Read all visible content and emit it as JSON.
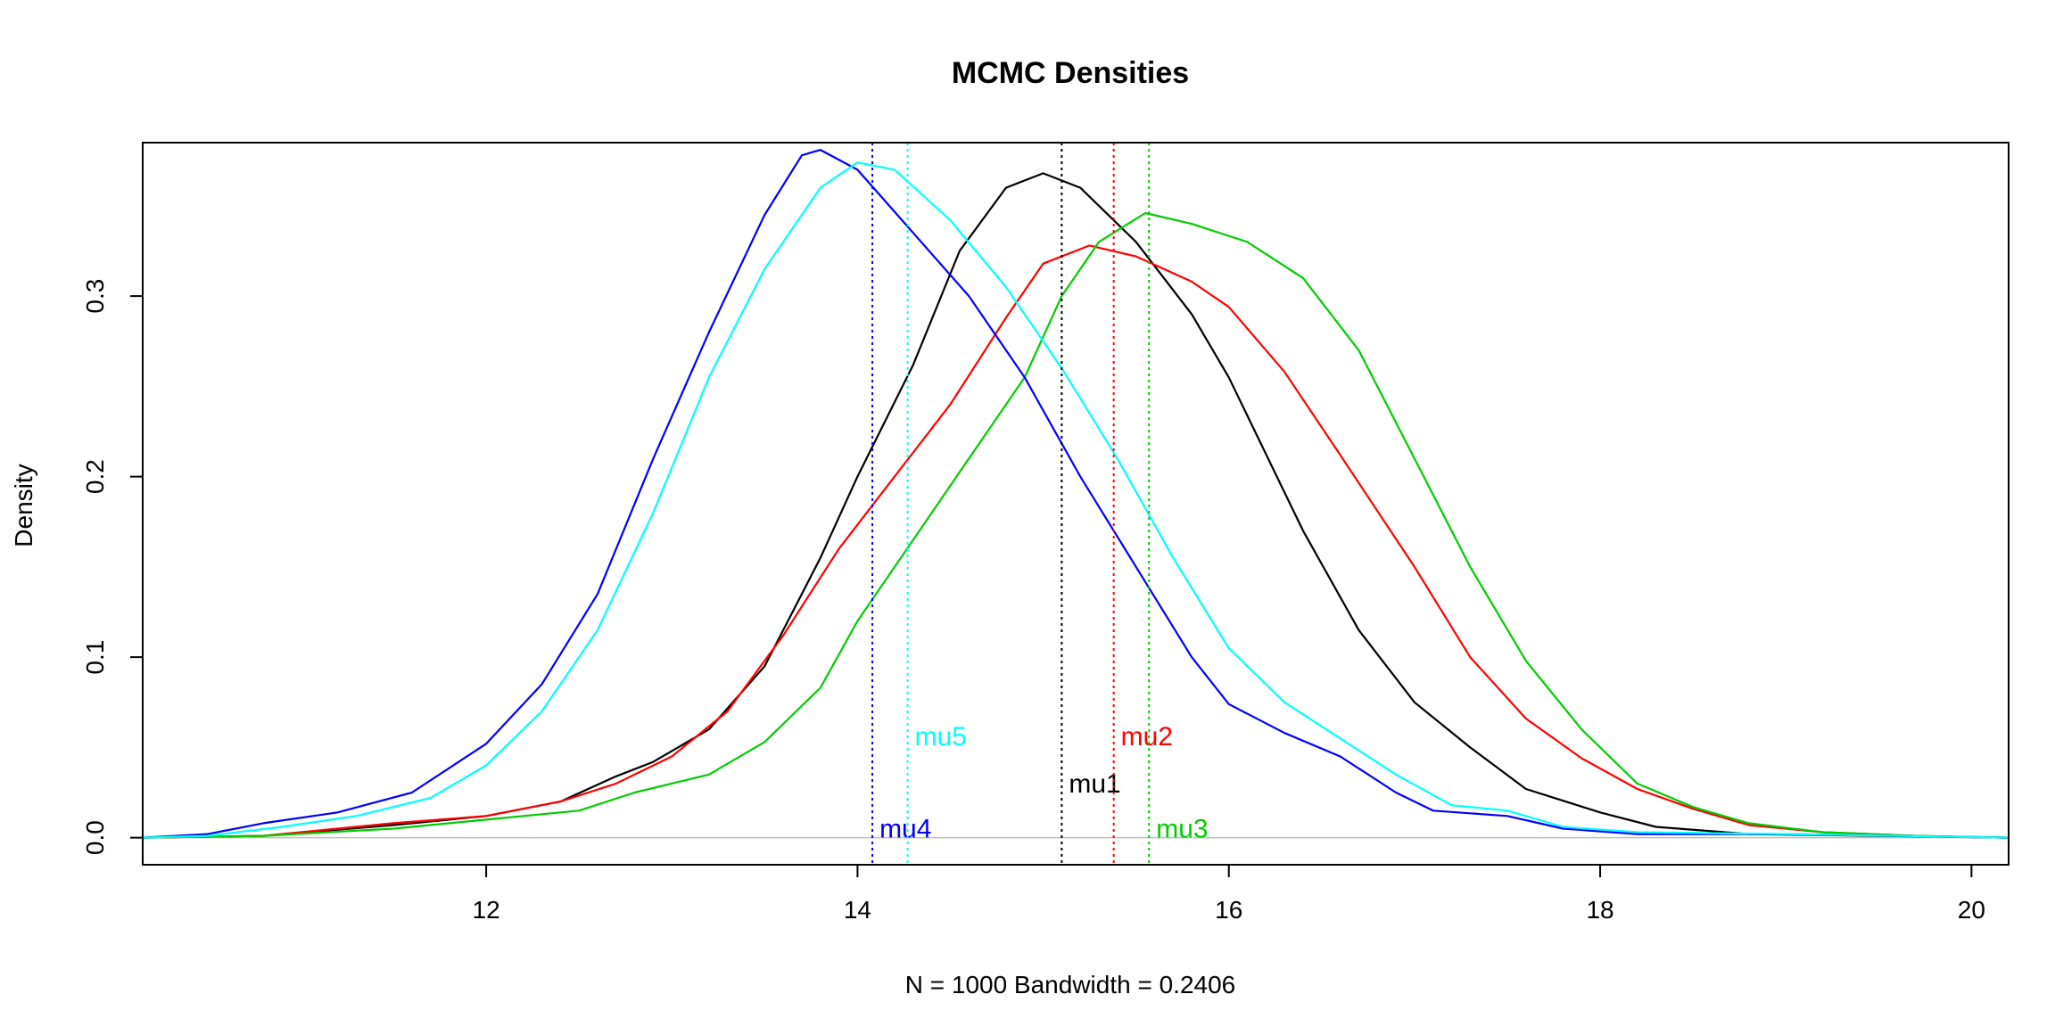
{
  "chart_data": {
    "type": "line",
    "title": "MCMC Densities",
    "xlabel": "N = 1000   Bandwidth = 0.2406",
    "ylabel": "Density",
    "xlim": [
      10.15,
      20.2
    ],
    "ylim": [
      -0.015,
      0.385
    ],
    "x_ticks": [
      12,
      14,
      16,
      18,
      20
    ],
    "x_tick_labels": [
      "12",
      "14",
      "16",
      "18",
      "20"
    ],
    "y_ticks": [
      0.0,
      0.1,
      0.2,
      0.3
    ],
    "y_tick_labels": [
      "0.0",
      "0.1",
      "0.2",
      "0.3"
    ],
    "grid": false,
    "zero_line": true,
    "series": [
      {
        "name": "mu1",
        "color": "#000000",
        "mean": 15.1,
        "label_y": 0.03,
        "points": [
          [
            10.15,
            0
          ],
          [
            10.8,
            0.001
          ],
          [
            11.5,
            0.007
          ],
          [
            12.0,
            0.012
          ],
          [
            12.4,
            0.02
          ],
          [
            12.7,
            0.034
          ],
          [
            12.9,
            0.042
          ],
          [
            13.2,
            0.06
          ],
          [
            13.5,
            0.095
          ],
          [
            13.8,
            0.155
          ],
          [
            14.0,
            0.2
          ],
          [
            14.3,
            0.262
          ],
          [
            14.55,
            0.325
          ],
          [
            14.8,
            0.36
          ],
          [
            15.0,
            0.368
          ],
          [
            15.2,
            0.36
          ],
          [
            15.5,
            0.33
          ],
          [
            15.8,
            0.29
          ],
          [
            16.0,
            0.255
          ],
          [
            16.4,
            0.17
          ],
          [
            16.7,
            0.115
          ],
          [
            17.0,
            0.075
          ],
          [
            17.3,
            0.05
          ],
          [
            17.6,
            0.027
          ],
          [
            18.0,
            0.014
          ],
          [
            18.3,
            0.006
          ],
          [
            18.8,
            0.002
          ],
          [
            19.5,
            0.001
          ],
          [
            20.2,
            0
          ]
        ]
      },
      {
        "name": "mu2",
        "color": "#ff0000",
        "mean": 15.38,
        "label_y": 0.056,
        "points": [
          [
            10.15,
            0
          ],
          [
            10.8,
            0.001
          ],
          [
            11.5,
            0.008
          ],
          [
            12.0,
            0.012
          ],
          [
            12.4,
            0.02
          ],
          [
            12.7,
            0.03
          ],
          [
            13.0,
            0.045
          ],
          [
            13.3,
            0.07
          ],
          [
            13.6,
            0.112
          ],
          [
            13.9,
            0.16
          ],
          [
            14.2,
            0.2
          ],
          [
            14.5,
            0.24
          ],
          [
            14.8,
            0.288
          ],
          [
            15.0,
            0.318
          ],
          [
            15.25,
            0.328
          ],
          [
            15.5,
            0.322
          ],
          [
            15.8,
            0.308
          ],
          [
            16.0,
            0.294
          ],
          [
            16.3,
            0.258
          ],
          [
            16.6,
            0.212
          ],
          [
            17.0,
            0.15
          ],
          [
            17.3,
            0.1
          ],
          [
            17.6,
            0.066
          ],
          [
            17.9,
            0.044
          ],
          [
            18.2,
            0.027
          ],
          [
            18.5,
            0.016
          ],
          [
            18.8,
            0.007
          ],
          [
            19.2,
            0.003
          ],
          [
            19.7,
            0.001
          ],
          [
            20.2,
            0
          ]
        ]
      },
      {
        "name": "mu3",
        "color": "#00cd00",
        "mean": 15.57,
        "label_y": 0.005,
        "points": [
          [
            10.15,
            0
          ],
          [
            10.8,
            0.001
          ],
          [
            11.5,
            0.005
          ],
          [
            12.0,
            0.01
          ],
          [
            12.5,
            0.015
          ],
          [
            12.8,
            0.025
          ],
          [
            13.2,
            0.035
          ],
          [
            13.5,
            0.053
          ],
          [
            13.8,
            0.083
          ],
          [
            14.0,
            0.12
          ],
          [
            14.3,
            0.165
          ],
          [
            14.6,
            0.21
          ],
          [
            14.9,
            0.255
          ],
          [
            15.1,
            0.3
          ],
          [
            15.3,
            0.33
          ],
          [
            15.55,
            0.346
          ],
          [
            15.8,
            0.34
          ],
          [
            16.1,
            0.33
          ],
          [
            16.4,
            0.31
          ],
          [
            16.7,
            0.27
          ],
          [
            17.0,
            0.21
          ],
          [
            17.3,
            0.15
          ],
          [
            17.6,
            0.098
          ],
          [
            17.9,
            0.06
          ],
          [
            18.2,
            0.03
          ],
          [
            18.5,
            0.017
          ],
          [
            18.8,
            0.008
          ],
          [
            19.2,
            0.003
          ],
          [
            19.7,
            0.001
          ],
          [
            20.2,
            0
          ]
        ]
      },
      {
        "name": "mu4",
        "color": "#0000ff",
        "mean": 14.08,
        "label_y": 0.005,
        "points": [
          [
            10.15,
            0
          ],
          [
            10.5,
            0.002
          ],
          [
            10.8,
            0.008
          ],
          [
            11.2,
            0.014
          ],
          [
            11.6,
            0.025
          ],
          [
            12.0,
            0.052
          ],
          [
            12.3,
            0.085
          ],
          [
            12.6,
            0.135
          ],
          [
            12.9,
            0.21
          ],
          [
            13.2,
            0.28
          ],
          [
            13.5,
            0.345
          ],
          [
            13.7,
            0.378
          ],
          [
            13.8,
            0.381
          ],
          [
            14.0,
            0.37
          ],
          [
            14.3,
            0.335
          ],
          [
            14.6,
            0.3
          ],
          [
            14.9,
            0.255
          ],
          [
            15.2,
            0.2
          ],
          [
            15.5,
            0.15
          ],
          [
            15.8,
            0.1
          ],
          [
            16.0,
            0.074
          ],
          [
            16.3,
            0.058
          ],
          [
            16.6,
            0.045
          ],
          [
            16.9,
            0.025
          ],
          [
            17.1,
            0.015
          ],
          [
            17.5,
            0.012
          ],
          [
            17.8,
            0.005
          ],
          [
            18.2,
            0.002
          ],
          [
            19.0,
            0.002
          ],
          [
            20.2,
            0
          ]
        ]
      },
      {
        "name": "mu5",
        "color": "#00ffff",
        "mean": 14.27,
        "label_y": 0.056,
        "points": [
          [
            10.15,
            0
          ],
          [
            10.5,
            0.001
          ],
          [
            10.9,
            0.006
          ],
          [
            11.3,
            0.012
          ],
          [
            11.7,
            0.022
          ],
          [
            12.0,
            0.04
          ],
          [
            12.3,
            0.07
          ],
          [
            12.6,
            0.115
          ],
          [
            12.9,
            0.18
          ],
          [
            13.2,
            0.255
          ],
          [
            13.5,
            0.315
          ],
          [
            13.8,
            0.36
          ],
          [
            14.0,
            0.374
          ],
          [
            14.2,
            0.37
          ],
          [
            14.5,
            0.342
          ],
          [
            14.8,
            0.305
          ],
          [
            15.1,
            0.26
          ],
          [
            15.4,
            0.21
          ],
          [
            15.7,
            0.155
          ],
          [
            16.0,
            0.105
          ],
          [
            16.3,
            0.075
          ],
          [
            16.6,
            0.055
          ],
          [
            16.9,
            0.035
          ],
          [
            17.2,
            0.018
          ],
          [
            17.5,
            0.015
          ],
          [
            17.8,
            0.006
          ],
          [
            18.2,
            0.003
          ],
          [
            19.0,
            0.002
          ],
          [
            20.2,
            0
          ]
        ]
      }
    ]
  }
}
